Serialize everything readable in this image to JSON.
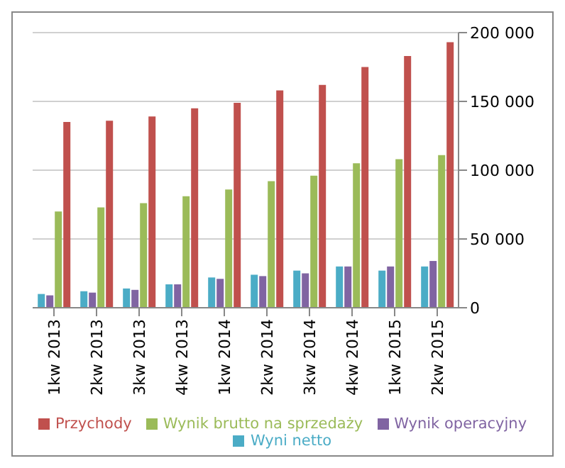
{
  "chart_data": {
    "type": "bar",
    "categories": [
      "1kw 2013",
      "2kw 2013",
      "3kw 2013",
      "4kw 2013",
      "1kw 2014",
      "2kw 2014",
      "3kw 2014",
      "4kw 2014",
      "1kw 2015",
      "2kw 2015"
    ],
    "series": [
      {
        "name": "Przychody",
        "color": "#c0504d",
        "values": [
          135000,
          136000,
          139000,
          145000,
          149000,
          158000,
          162000,
          175000,
          183000,
          193000
        ]
      },
      {
        "name": "Wynik brutto na sprzedaży",
        "color": "#9bbb59",
        "values": [
          70000,
          73000,
          76000,
          81000,
          86000,
          92000,
          96000,
          105000,
          108000,
          111000
        ]
      },
      {
        "name": "Wynik operacyjny",
        "color": "#8064a2",
        "values": [
          9000,
          11000,
          13000,
          17000,
          21000,
          23000,
          25000,
          30000,
          30000,
          34000
        ]
      },
      {
        "name": "Wyni netto",
        "color": "#4bacc6",
        "values": [
          10000,
          12000,
          14000,
          17000,
          22000,
          24000,
          27000,
          30000,
          27000,
          30000
        ]
      }
    ],
    "ylim": [
      0,
      200000
    ],
    "yticks": [
      0,
      {
        "value": 50000,
        "label": "50 000"
      },
      {
        "value": 100000,
        "label": "100 000"
      },
      {
        "value": 150000,
        "label": "150 000"
      },
      {
        "value": 200000,
        "label": "200 000"
      }
    ],
    "grid": "y",
    "legend": "bottom"
  }
}
